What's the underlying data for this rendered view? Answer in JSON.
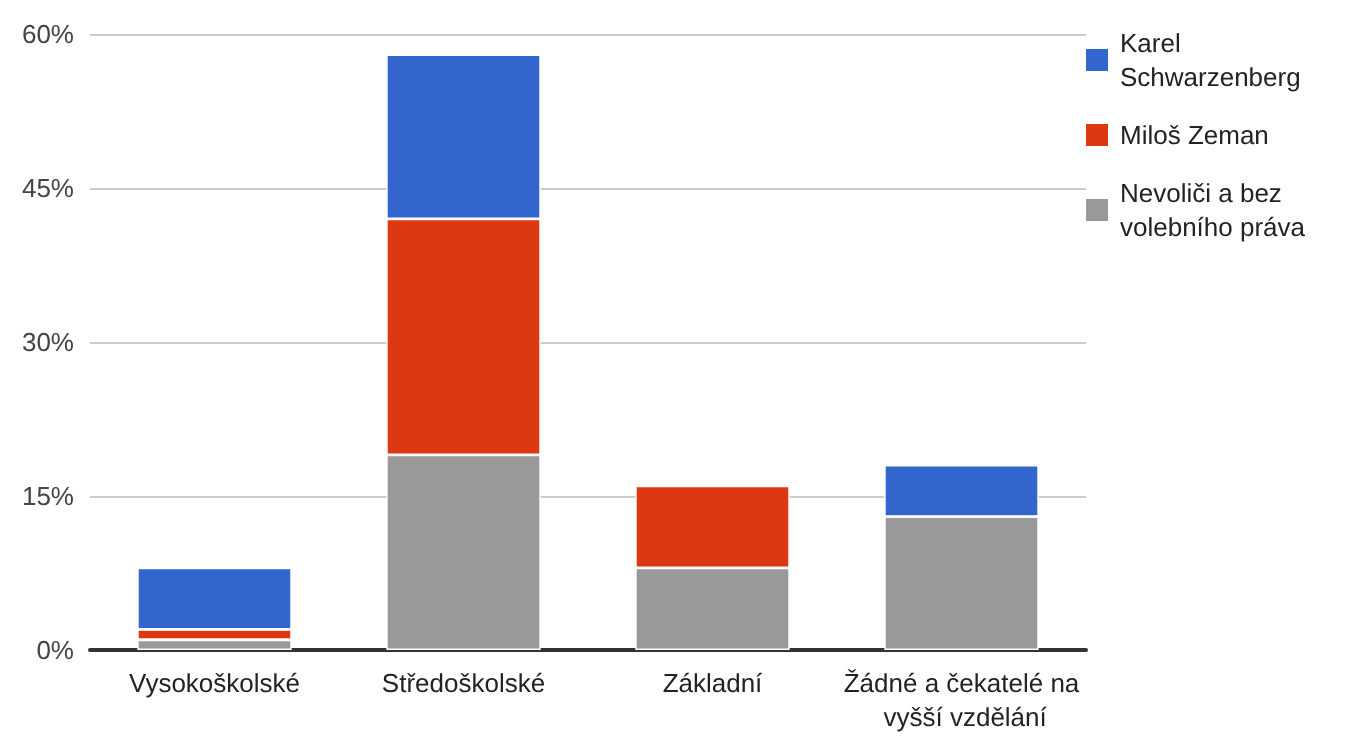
{
  "chart_data": {
    "type": "bar",
    "stacked": true,
    "categories": [
      "Vysokoškolské",
      "Středoškolské",
      "Základní",
      "Žádné a čekatelé na vyšší vzdělání"
    ],
    "series": [
      {
        "name": "Nevoliči a bez volebního práva",
        "color": "#999999",
        "values": [
          1,
          19,
          8,
          13
        ]
      },
      {
        "name": "Miloš Zeman",
        "color": "#dc3912",
        "values": [
          1,
          23,
          8,
          0
        ]
      },
      {
        "name": "Karel Schwarzenberg",
        "color": "#3366cc",
        "values": [
          6,
          16,
          0,
          5
        ]
      }
    ],
    "ylim": [
      0,
      60
    ],
    "yticks": [
      {
        "value": 0,
        "label": "0%"
      },
      {
        "value": 15,
        "label": "15%"
      },
      {
        "value": 30,
        "label": "30%"
      },
      {
        "value": 45,
        "label": "45%"
      },
      {
        "value": 60,
        "label": "60%"
      }
    ],
    "grid": true,
    "legend": "right"
  }
}
